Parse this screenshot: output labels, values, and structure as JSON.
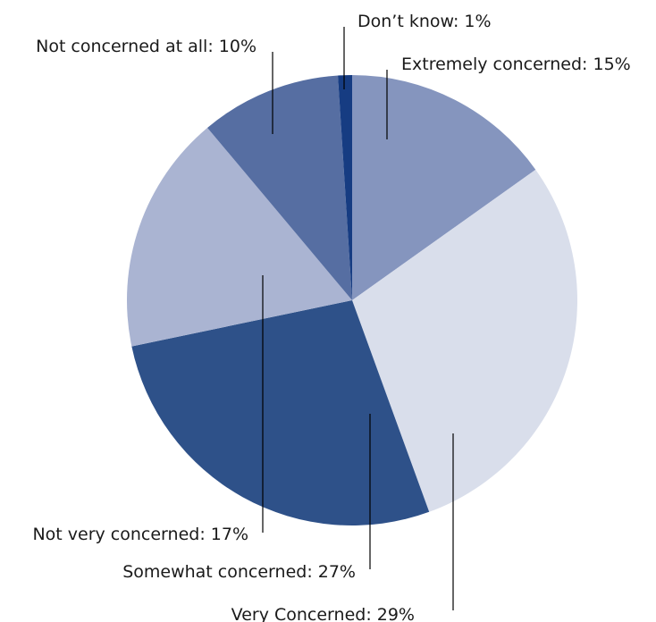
{
  "chart_data": {
    "type": "pie",
    "title": "",
    "slices": [
      {
        "name": "Extremely concerned",
        "value": 15,
        "label": "Extremely concerned: 15%",
        "color": "#8595be"
      },
      {
        "name": "Very Concerned",
        "value": 29,
        "label": "Very Concerned: 29%",
        "color": "#d9deeb"
      },
      {
        "name": "Somewhat concerned",
        "value": 27,
        "label": "Somewhat concerned: 27%",
        "color": "#2e5189"
      },
      {
        "name": "Not very concerned",
        "value": 17,
        "label": "Not very concerned: 17%",
        "color": "#aab4d2"
      },
      {
        "name": "Not concerned at all",
        "value": 10,
        "label": "Not concerned at all: 10%",
        "color": "#566ea2"
      },
      {
        "name": "Don’t know",
        "value": 1,
        "label": "Don’t know: 1%",
        "color": "#163c82"
      }
    ],
    "start_angle_deg": 0,
    "direction": "clockwise",
    "legend": "none",
    "labels": "outside with leader lines"
  }
}
